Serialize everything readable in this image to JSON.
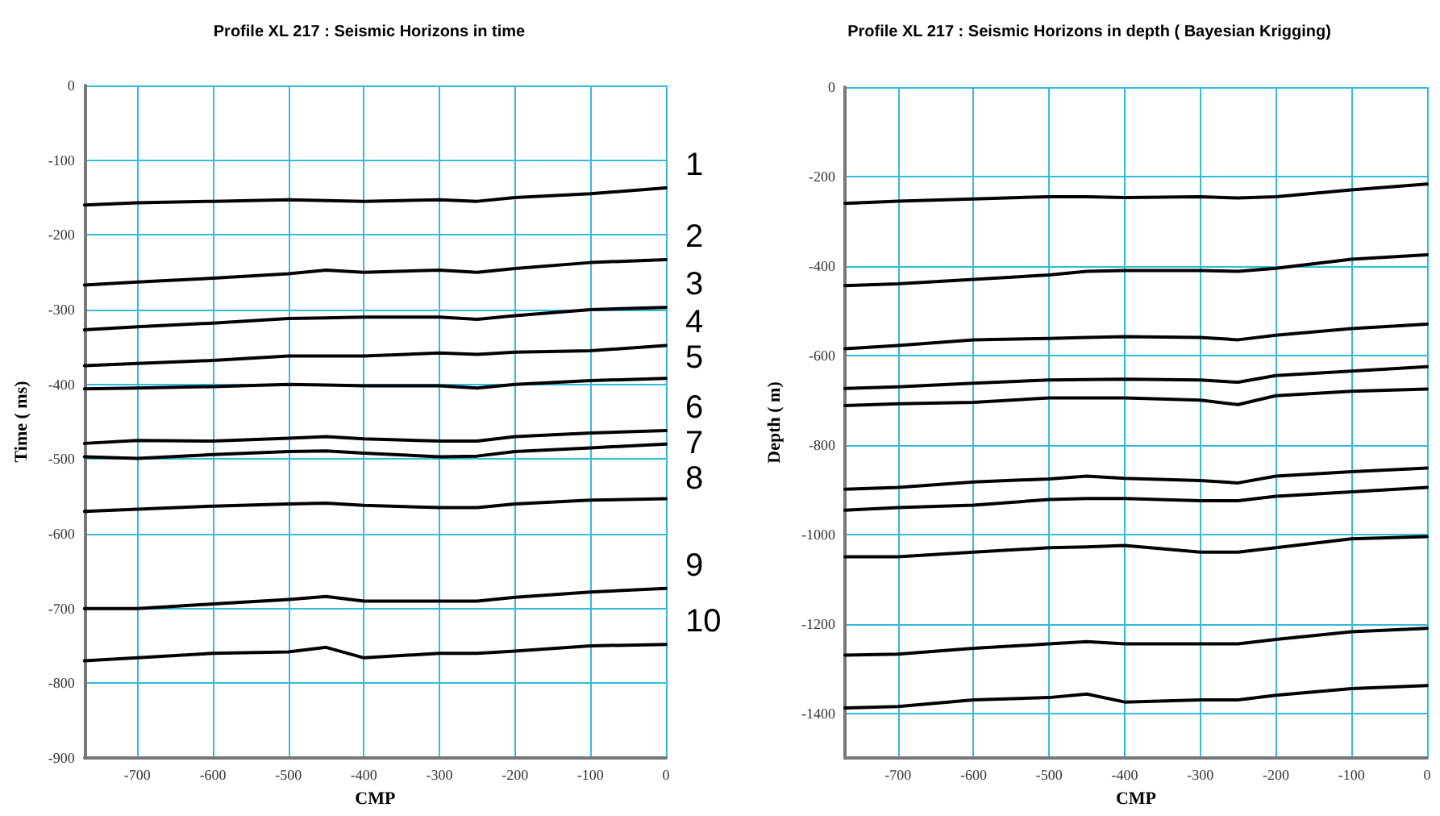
{
  "chart_data": [
    {
      "type": "line",
      "title": "Profile XL 217 : Seismic Horizons in time",
      "xlabel": "CMP",
      "ylabel": "Time ( ms)",
      "xlim": [
        -770,
        0
      ],
      "xticks": [
        -700,
        -600,
        -500,
        -400,
        -300,
        -200,
        -100,
        0
      ],
      "ylim": [
        -900,
        0
      ],
      "yticks": [
        -900,
        -800,
        -700,
        -600,
        -500,
        -400,
        -300,
        -200,
        -100,
        0
      ],
      "grid": true,
      "marker": "none",
      "line_style": "solid",
      "x": [
        -770,
        -700,
        -600,
        -500,
        -450,
        -400,
        -300,
        -250,
        -200,
        -100,
        0
      ],
      "series": [
        {
          "name": "1",
          "color": "#000000",
          "values": [
            -160,
            -157,
            -155,
            -153,
            -154,
            -155,
            -153,
            -155,
            -150,
            -145,
            -137
          ]
        },
        {
          "name": "2",
          "color": "#000000",
          "values": [
            -267,
            -263,
            -258,
            -252,
            -247,
            -250,
            -247,
            -250,
            -245,
            -237,
            -233
          ]
        },
        {
          "name": "3",
          "color": "#000000",
          "values": [
            -327,
            -323,
            -318,
            -312,
            -311,
            -310,
            -310,
            -313,
            -308,
            -300,
            -297
          ]
        },
        {
          "name": "4",
          "color": "#000000",
          "values": [
            -375,
            -372,
            -368,
            -362,
            -362,
            -362,
            -358,
            -360,
            -357,
            -355,
            -348
          ]
        },
        {
          "name": "5",
          "color": "#000000",
          "values": [
            -406,
            -405,
            -403,
            -400,
            -401,
            -402,
            -402,
            -405,
            -400,
            -395,
            -392
          ]
        },
        {
          "name": "6",
          "color": "#000000",
          "values": [
            -479,
            -475,
            -476,
            -472,
            -470,
            -473,
            -476,
            -476,
            -470,
            -465,
            -462
          ]
        },
        {
          "name": "7",
          "color": "#000000",
          "values": [
            -497,
            -499,
            -494,
            -490,
            -489,
            -492,
            -497,
            -496,
            -490,
            -485,
            -480
          ]
        },
        {
          "name": "8",
          "color": "#000000",
          "values": [
            -570,
            -567,
            -563,
            -560,
            -559,
            -562,
            -565,
            -565,
            -560,
            -555,
            -553
          ]
        },
        {
          "name": "9",
          "color": "#000000",
          "values": [
            -700,
            -700,
            -694,
            -688,
            -684,
            -690,
            -690,
            -690,
            -685,
            -678,
            -673
          ]
        },
        {
          "name": "10",
          "color": "#000000",
          "values": [
            -770,
            -766,
            -760,
            -758,
            -752,
            -766,
            -760,
            -760,
            -757,
            -750,
            -748
          ]
        }
      ]
    },
    {
      "type": "line",
      "title": "Profile XL 217 : Seismic Horizons in depth ( Bayesian Krigging)",
      "xlabel": "CMP",
      "ylabel": "Depth ( m)",
      "xlim": [
        -770,
        0
      ],
      "xticks": [
        -700,
        -600,
        -500,
        -400,
        -300,
        -200,
        -100,
        0
      ],
      "ylim": [
        -1500,
        0
      ],
      "yticks": [
        -1400,
        -1200,
        -1000,
        -800,
        -600,
        -400,
        -200,
        0
      ],
      "grid": true,
      "marker": "none",
      "line_style": "solid",
      "x": [
        -770,
        -700,
        -600,
        -500,
        -450,
        -400,
        -300,
        -250,
        -200,
        -100,
        0
      ],
      "series": [
        {
          "color": "#000000",
          "values": [
            -260,
            -255,
            -250,
            -245,
            -245,
            -247,
            -245,
            -248,
            -245,
            -230,
            -217
          ]
        },
        {
          "color": "#000000",
          "values": [
            -444,
            -440,
            -430,
            -420,
            -412,
            -410,
            -410,
            -412,
            -405,
            -385,
            -375
          ]
        },
        {
          "color": "#000000",
          "values": [
            -585,
            -578,
            -565,
            -562,
            -560,
            -558,
            -560,
            -565,
            -555,
            -540,
            -530
          ]
        },
        {
          "color": "#000000",
          "values": [
            -674,
            -670,
            -662,
            -655,
            -654,
            -653,
            -655,
            -660,
            -645,
            -635,
            -625
          ]
        },
        {
          "color": "#000000",
          "values": [
            -712,
            -708,
            -705,
            -695,
            -695,
            -695,
            -700,
            -710,
            -690,
            -680,
            -675
          ]
        },
        {
          "color": "#000000",
          "values": [
            -899,
            -895,
            -883,
            -876,
            -870,
            -875,
            -880,
            -885,
            -870,
            -860,
            -852
          ]
        },
        {
          "color": "#000000",
          "values": [
            -946,
            -940,
            -935,
            -922,
            -920,
            -920,
            -925,
            -925,
            -915,
            -905,
            -895
          ]
        },
        {
          "color": "#000000",
          "values": [
            -1050,
            -1050,
            -1040,
            -1030,
            -1028,
            -1025,
            -1040,
            -1040,
            -1030,
            -1010,
            -1005
          ]
        },
        {
          "color": "#000000",
          "values": [
            -1270,
            -1268,
            -1255,
            -1245,
            -1240,
            -1245,
            -1245,
            -1245,
            -1235,
            -1218,
            -1210
          ]
        },
        {
          "color": "#000000",
          "values": [
            -1388,
            -1385,
            -1370,
            -1365,
            -1357,
            -1375,
            -1370,
            -1370,
            -1360,
            -1345,
            -1338
          ]
        }
      ]
    }
  ]
}
